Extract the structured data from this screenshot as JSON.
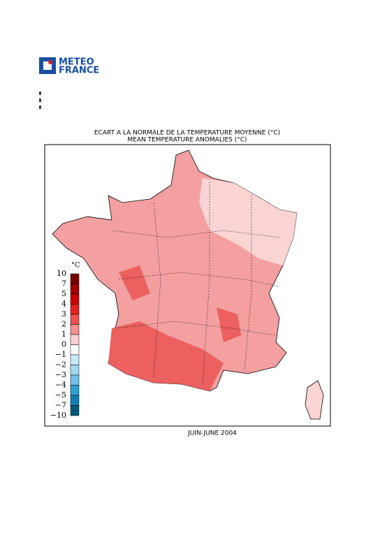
{
  "logo": {
    "line1": "METEO",
    "line2": "FRANCE"
  },
  "map": {
    "title": "ECART A LA NORMALE DE LA TEMPERATURE MOYENNE (°C)",
    "subtitle": "MEAN TEMPERATURE ANOMALIES (°C)",
    "period": "JUIN-JUNE 2004",
    "legend": {
      "unit": "°C",
      "labels": [
        "10",
        "7",
        "5",
        "4",
        "3",
        "2",
        "1",
        "0",
        "−1",
        "−2",
        "−3",
        "−4",
        "−5",
        "−7",
        "−10"
      ],
      "colors": [
        "#780000",
        "#a00000",
        "#cc0000",
        "#e82020",
        "#f05050",
        "#f49090",
        "#fcd0d0",
        "#ffffff",
        "#c8e8f8",
        "#a0d8f0",
        "#70c0e8",
        "#30a0d0",
        "#1080b0",
        "#005878"
      ]
    }
  }
}
